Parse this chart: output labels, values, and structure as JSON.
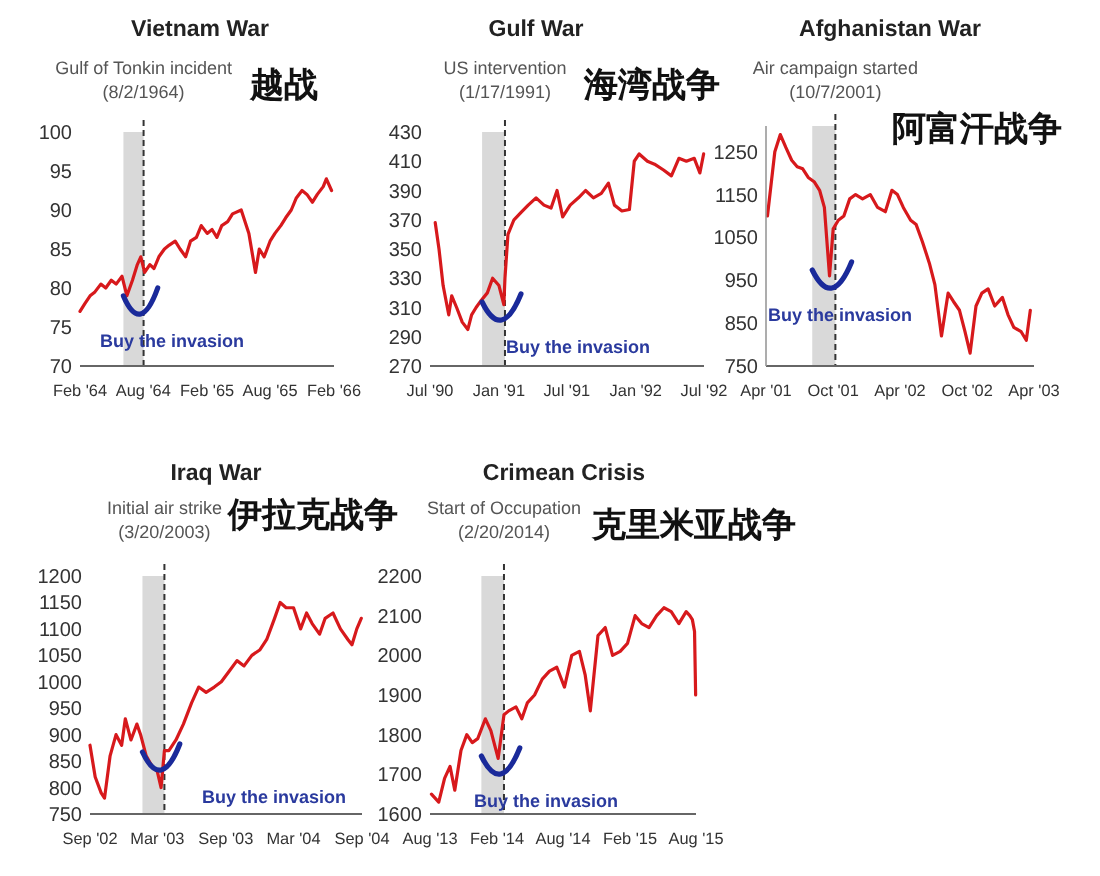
{
  "chart_data": [
    {
      "type": "line",
      "title": "Vietnam War",
      "subtitle": "越战",
      "x": [
        "1964-02-01",
        "1964-02-15",
        "1964-03-01",
        "1964-03-15",
        "1964-04-01",
        "1964-04-15",
        "1964-05-01",
        "1964-05-15",
        "1964-06-01",
        "1964-06-15",
        "1964-07-01",
        "1964-07-15",
        "1964-07-25",
        "1964-08-05",
        "1964-08-20",
        "1964-09-01",
        "1964-09-15",
        "1964-10-01",
        "1964-10-15",
        "1964-11-01",
        "1964-11-15",
        "1964-12-01",
        "1964-12-15",
        "1965-01-01",
        "1965-01-15",
        "1965-02-01",
        "1965-02-15",
        "1965-03-01",
        "1965-03-15",
        "1965-04-01",
        "1965-04-15",
        "1965-05-10",
        "1965-06-01",
        "1965-06-20",
        "1965-07-01",
        "1965-07-15",
        "1965-08-01",
        "1965-08-15",
        "1965-09-01",
        "1965-09-15",
        "1965-10-01",
        "1965-10-15",
        "1965-11-01",
        "1965-11-15",
        "1965-12-01",
        "1965-12-15",
        "1966-01-01",
        "1966-01-10",
        "1966-01-25"
      ],
      "series": [
        {
          "color": "#d7191c",
          "values": [
            77,
            78,
            79,
            79.5,
            80.5,
            80,
            81,
            80.5,
            81.5,
            79,
            81,
            83,
            84,
            82,
            83,
            82.5,
            84,
            85,
            85.5,
            86,
            85,
            84,
            86,
            86.5,
            88,
            87,
            87.5,
            86.5,
            88,
            88.5,
            89.5,
            90,
            87,
            82,
            85,
            84,
            86,
            87,
            88,
            89,
            90,
            91.5,
            92.5,
            92,
            91,
            92,
            93,
            94,
            92.5
          ]
        }
      ],
      "xlim": [
        "1964-02-01",
        "1966-02-01"
      ],
      "xticks": [
        {
          "value": "1964-02-01",
          "label": "Feb '64"
        },
        {
          "value": "1964-08-01",
          "label": "Aug '64"
        },
        {
          "value": "1965-02-01",
          "label": "Feb '65"
        },
        {
          "value": "1965-08-01",
          "label": "Aug '65"
        },
        {
          "value": "1966-02-01",
          "label": "Feb '66"
        }
      ],
      "ylim": [
        70,
        100
      ],
      "yticks": [
        70,
        75,
        80,
        85,
        90,
        95,
        100
      ],
      "bands": [
        {
          "axis": "x",
          "from": "1964-06-05",
          "to": "1964-08-02",
          "color": "#d9d9d9"
        }
      ],
      "ref_lines": [
        {
          "axis": "x",
          "value": "1964-08-02",
          "label": "Gulf of Tonkin incident (8/2/1964)",
          "color": "#333333",
          "line_style": "dashed"
        }
      ],
      "annotations": [
        "Buy the invasion"
      ]
    },
    {
      "type": "line",
      "title": "Gulf War",
      "subtitle": "海湾战争",
      "x": [
        "1990-07-15",
        "1990-07-25",
        "1990-08-05",
        "1990-08-20",
        "1990-08-28",
        "1990-09-10",
        "1990-09-25",
        "1990-10-10",
        "1990-10-20",
        "1990-11-01",
        "1990-11-15",
        "1990-12-01",
        "1990-12-15",
        "1991-01-01",
        "1991-01-14",
        "1991-01-17",
        "1991-01-25",
        "1991-02-10",
        "1991-03-01",
        "1991-03-20",
        "1991-04-10",
        "1991-05-01",
        "1991-05-20",
        "1991-06-05",
        "1991-06-20",
        "1991-07-10",
        "1991-08-01",
        "1991-08-20",
        "1991-09-10",
        "1991-10-01",
        "1991-10-20",
        "1991-11-05",
        "1991-11-25",
        "1991-12-15",
        "1991-12-28",
        "1992-01-10",
        "1992-02-01",
        "1992-02-20",
        "1992-03-15",
        "1992-04-05",
        "1992-04-25",
        "1992-05-15",
        "1992-06-05",
        "1992-06-20",
        "1992-06-30"
      ],
      "series": [
        {
          "color": "#d7191c",
          "values": [
            368,
            350,
            325,
            305,
            318,
            310,
            300,
            295,
            305,
            310,
            315,
            320,
            330,
            325,
            312,
            330,
            360,
            370,
            375,
            380,
            385,
            380,
            378,
            390,
            372,
            380,
            385,
            390,
            385,
            388,
            395,
            380,
            376,
            377,
            410,
            415,
            410,
            408,
            404,
            400,
            412,
            410,
            412,
            402,
            415
          ]
        }
      ],
      "xlim": [
        "1990-07-01",
        "1992-07-01"
      ],
      "xticks": [
        {
          "value": "1990-07-01",
          "label": "Jul '90"
        },
        {
          "value": "1991-01-01",
          "label": "Jan '91"
        },
        {
          "value": "1991-07-01",
          "label": "Jul '91"
        },
        {
          "value": "1992-01-01",
          "label": "Jan '92"
        },
        {
          "value": "1992-07-01",
          "label": "Jul '92"
        }
      ],
      "ylim": [
        270,
        430
      ],
      "yticks": [
        270,
        290,
        310,
        330,
        350,
        370,
        390,
        410,
        430
      ],
      "bands": [
        {
          "axis": "x",
          "from": "1990-11-17",
          "to": "1991-01-17",
          "color": "#d9d9d9"
        }
      ],
      "ref_lines": [
        {
          "axis": "x",
          "value": "1991-01-17",
          "label": "US intervention (1/17/1991)",
          "color": "#333333",
          "line_style": "dashed"
        }
      ],
      "annotations": [
        "Buy the invasion"
      ]
    },
    {
      "type": "line",
      "title": "Afghanistan War",
      "subtitle": "阿富汗战争",
      "x": [
        "2001-04-05",
        "2001-04-25",
        "2001-05-10",
        "2001-05-25",
        "2001-06-10",
        "2001-06-25",
        "2001-07-10",
        "2001-07-25",
        "2001-08-10",
        "2001-08-25",
        "2001-09-07",
        "2001-09-21",
        "2001-10-01",
        "2001-10-15",
        "2001-10-30",
        "2001-11-15",
        "2001-12-01",
        "2001-12-20",
        "2002-01-10",
        "2002-01-30",
        "2002-02-20",
        "2002-03-10",
        "2002-03-25",
        "2002-04-10",
        "2002-04-30",
        "2002-05-15",
        "2002-06-01",
        "2002-06-20",
        "2002-07-05",
        "2002-07-23",
        "2002-08-10",
        "2002-08-25",
        "2002-09-10",
        "2002-09-25",
        "2002-10-09",
        "2002-10-25",
        "2002-11-10",
        "2002-11-27",
        "2002-12-15",
        "2003-01-05",
        "2003-01-20",
        "2003-02-05",
        "2003-02-25",
        "2003-03-11",
        "2003-03-22"
      ],
      "series": [
        {
          "color": "#d7191c",
          "values": [
            1100,
            1250,
            1290,
            1260,
            1230,
            1215,
            1210,
            1190,
            1180,
            1160,
            1120,
            960,
            1070,
            1090,
            1100,
            1140,
            1150,
            1140,
            1150,
            1120,
            1110,
            1160,
            1150,
            1120,
            1090,
            1080,
            1040,
            990,
            940,
            820,
            920,
            900,
            880,
            830,
            780,
            890,
            920,
            930,
            890,
            910,
            870,
            840,
            830,
            810,
            880
          ]
        }
      ],
      "xlim": [
        "2001-04-01",
        "2003-04-01"
      ],
      "xticks": [
        {
          "value": "2001-04-01",
          "label": "Apr '01"
        },
        {
          "value": "2001-10-01",
          "label": "Oct '01"
        },
        {
          "value": "2002-04-01",
          "label": "Apr '02"
        },
        {
          "value": "2002-10-01",
          "label": "Oct '02"
        },
        {
          "value": "2003-04-01",
          "label": "Apr '03"
        }
      ],
      "ylim": [
        750,
        1310
      ],
      "yticks": [
        750,
        850,
        950,
        1050,
        1150,
        1250
      ],
      "bands": [
        {
          "axis": "x",
          "from": "2001-08-05",
          "to": "2001-10-07",
          "color": "#d9d9d9"
        }
      ],
      "ref_lines": [
        {
          "axis": "x",
          "value": "2001-10-07",
          "label": "Air campaign started (10/7/2001)",
          "color": "#333333",
          "line_style": "dashed"
        }
      ],
      "annotations": [
        "Buy the invasion"
      ]
    },
    {
      "type": "line",
      "title": "Iraq War",
      "subtitle": "伊拉克战争",
      "x": [
        "2002-09-01",
        "2002-09-15",
        "2002-10-01",
        "2002-10-10",
        "2002-10-25",
        "2002-11-10",
        "2002-11-25",
        "2002-12-05",
        "2002-12-20",
        "2003-01-05",
        "2003-01-15",
        "2003-01-30",
        "2003-02-15",
        "2003-03-01",
        "2003-03-11",
        "2003-03-20",
        "2003-04-01",
        "2003-04-20",
        "2003-05-10",
        "2003-06-01",
        "2003-06-20",
        "2003-07-10",
        "2003-08-01",
        "2003-08-20",
        "2003-09-10",
        "2003-10-01",
        "2003-10-20",
        "2003-11-10",
        "2003-12-01",
        "2003-12-20",
        "2004-01-10",
        "2004-01-25",
        "2004-02-10",
        "2004-03-01",
        "2004-03-20",
        "2004-04-05",
        "2004-04-20",
        "2004-05-10",
        "2004-05-25",
        "2004-06-15",
        "2004-07-05",
        "2004-07-25",
        "2004-08-05",
        "2004-08-18",
        "2004-08-30"
      ],
      "series": [
        {
          "color": "#d7191c",
          "values": [
            880,
            820,
            790,
            780,
            860,
            900,
            880,
            930,
            890,
            920,
            900,
            860,
            840,
            830,
            800,
            870,
            870,
            890,
            920,
            960,
            990,
            980,
            990,
            1000,
            1020,
            1040,
            1030,
            1050,
            1060,
            1080,
            1120,
            1150,
            1140,
            1140,
            1100,
            1130,
            1110,
            1090,
            1120,
            1130,
            1100,
            1080,
            1070,
            1100,
            1120
          ]
        }
      ],
      "xlim": [
        "2002-09-01",
        "2004-09-01"
      ],
      "xticks": [
        {
          "value": "2002-09-01",
          "label": "Sep '02"
        },
        {
          "value": "2003-03-01",
          "label": "Mar '03"
        },
        {
          "value": "2003-09-01",
          "label": "Sep '03"
        },
        {
          "value": "2004-03-01",
          "label": "Mar '04"
        },
        {
          "value": "2004-09-01",
          "label": "Sep '04"
        }
      ],
      "ylim": [
        750,
        1200
      ],
      "yticks": [
        750,
        800,
        850,
        900,
        950,
        1000,
        1050,
        1100,
        1150,
        1200
      ],
      "bands": [
        {
          "axis": "x",
          "from": "2003-01-20",
          "to": "2003-03-20",
          "color": "#d9d9d9"
        }
      ],
      "ref_lines": [
        {
          "axis": "x",
          "value": "2003-03-20",
          "label": "Initial air strike (3/20/2003)",
          "color": "#333333",
          "line_style": "dashed"
        }
      ],
      "annotations": [
        "Buy the invasion"
      ]
    },
    {
      "type": "line",
      "title": "Crimean Crisis",
      "subtitle": "克里米亚战争",
      "x": [
        "2013-08-05",
        "2013-08-25",
        "2013-09-10",
        "2013-09-25",
        "2013-10-08",
        "2013-10-25",
        "2013-11-10",
        "2013-11-25",
        "2013-12-10",
        "2013-12-31",
        "2014-01-15",
        "2014-02-04",
        "2014-02-20",
        "2014-03-05",
        "2014-03-25",
        "2014-04-10",
        "2014-04-25",
        "2014-05-15",
        "2014-06-05",
        "2014-06-25",
        "2014-07-15",
        "2014-08-05",
        "2014-08-25",
        "2014-09-15",
        "2014-10-01",
        "2014-10-15",
        "2014-11-05",
        "2014-11-25",
        "2014-12-15",
        "2015-01-05",
        "2015-01-25",
        "2015-02-15",
        "2015-03-05",
        "2015-03-25",
        "2015-04-15",
        "2015-05-05",
        "2015-05-25",
        "2015-06-15",
        "2015-07-05",
        "2015-07-15",
        "2015-07-22",
        "2015-07-28",
        "2015-07-31"
      ],
      "series": [
        {
          "color": "#d7191c",
          "values": [
            1650,
            1630,
            1690,
            1720,
            1660,
            1760,
            1800,
            1780,
            1790,
            1840,
            1810,
            1740,
            1850,
            1860,
            1870,
            1840,
            1880,
            1900,
            1940,
            1960,
            1970,
            1920,
            2000,
            2010,
            1950,
            1860,
            2050,
            2070,
            2000,
            2010,
            2030,
            2100,
            2080,
            2070,
            2100,
            2120,
            2110,
            2080,
            2110,
            2100,
            2090,
            2060,
            1900
          ]
        }
      ],
      "xlim": [
        "2013-08-01",
        "2015-08-01"
      ],
      "xticks": [
        {
          "value": "2013-08-01",
          "label": "Aug '13"
        },
        {
          "value": "2014-02-01",
          "label": "Feb '14"
        },
        {
          "value": "2014-08-01",
          "label": "Aug '14"
        },
        {
          "value": "2015-02-01",
          "label": "Feb '15"
        },
        {
          "value": "2015-08-01",
          "label": "Aug '15"
        }
      ],
      "ylim": [
        1600,
        2200
      ],
      "yticks": [
        1600,
        1700,
        1800,
        1900,
        2000,
        2100,
        2200
      ],
      "bands": [
        {
          "axis": "x",
          "from": "2013-12-20",
          "to": "2014-02-20",
          "color": "#d9d9d9"
        }
      ],
      "ref_lines": [
        {
          "axis": "x",
          "value": "2014-02-20",
          "label": "Start of Occupation (2/20/2014)",
          "color": "#333333",
          "line_style": "dashed"
        }
      ],
      "annotations": [
        "Buy the invasion"
      ]
    }
  ]
}
